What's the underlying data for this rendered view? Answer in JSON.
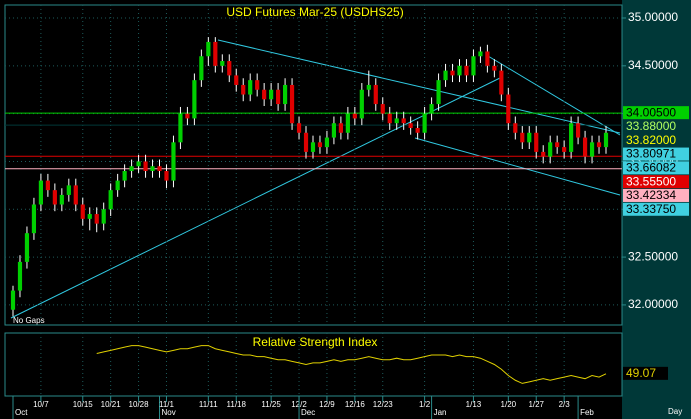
{
  "chart_data": [
    {
      "type": "candlestick",
      "title": "USD Futures Mar-25 (USDHS25)",
      "note": "No Gaps",
      "x_unit": "Day",
      "categories": [
        null,
        null,
        null,
        null,
        "10/7",
        null,
        null,
        null,
        null,
        null,
        "10/15",
        null,
        null,
        null,
        "10/21",
        null,
        null,
        null,
        "10/28",
        null,
        null,
        null,
        "11/1",
        null,
        null,
        null,
        null,
        null,
        "11/11",
        null,
        null,
        null,
        "11/18",
        null,
        null,
        null,
        null,
        "11/25",
        null,
        null,
        null,
        "12/2",
        null,
        null,
        null,
        "12/9",
        null,
        null,
        null,
        "12/16",
        null,
        null,
        null,
        "12/23",
        null,
        null,
        null,
        null,
        null,
        "1/2",
        null,
        null,
        null,
        null,
        null,
        null,
        "1/13",
        null,
        null,
        null,
        null,
        "1/20",
        null,
        null,
        null,
        "1/27",
        null,
        null,
        null,
        "2/3",
        null,
        null,
        null,
        null,
        null,
        null
      ],
      "months": [
        "Oct",
        null,
        null,
        null,
        null,
        null,
        null,
        null,
        null,
        null,
        null,
        null,
        null,
        null,
        null,
        null,
        null,
        null,
        null,
        null,
        null,
        "Nov",
        null,
        null,
        null,
        null,
        null,
        null,
        null,
        null,
        null,
        null,
        null,
        null,
        null,
        null,
        null,
        null,
        null,
        null,
        null,
        "Dec",
        null,
        null,
        null,
        null,
        null,
        null,
        null,
        null,
        null,
        null,
        null,
        null,
        null,
        null,
        null,
        null,
        null,
        null,
        "Jan",
        null,
        null,
        null,
        null,
        null,
        null,
        null,
        null,
        null,
        null,
        null,
        null,
        null,
        null,
        null,
        null,
        null,
        null,
        null,
        null,
        "Feb",
        null,
        null,
        null,
        null
      ],
      "open": [
        31.95,
        32.15,
        32.45,
        32.75,
        33.05,
        33.3,
        33.2,
        33.05,
        33.15,
        33.25,
        33.05,
        32.9,
        32.95,
        32.85,
        33.0,
        33.2,
        33.3,
        33.4,
        33.45,
        33.5,
        33.4,
        33.45,
        33.4,
        33.3,
        33.7,
        34.0,
        33.95,
        34.35,
        34.6,
        34.75,
        34.5,
        34.55,
        34.4,
        34.3,
        34.2,
        34.35,
        34.25,
        34.15,
        34.25,
        34.1,
        34.3,
        33.9,
        33.8,
        33.6,
        33.7,
        33.65,
        33.75,
        33.9,
        33.8,
        34.0,
        33.95,
        34.25,
        34.3,
        34.1,
        34.0,
        33.9,
        33.95,
        33.9,
        33.85,
        33.8,
        34.0,
        34.1,
        34.35,
        34.45,
        34.4,
        34.5,
        34.4,
        34.6,
        34.65,
        34.5,
        34.45,
        34.2,
        33.9,
        33.8,
        33.7,
        33.8,
        33.6,
        33.55,
        33.7,
        33.65,
        33.6,
        33.9,
        33.75,
        33.55,
        33.7,
        33.65
      ],
      "high": [
        32.2,
        32.52,
        32.82,
        33.12,
        33.37,
        33.37,
        33.27,
        33.22,
        33.32,
        33.32,
        33.12,
        33.02,
        33.02,
        33.07,
        33.27,
        33.37,
        33.47,
        33.52,
        33.57,
        33.57,
        33.52,
        33.52,
        33.47,
        33.77,
        34.07,
        34.07,
        34.42,
        34.67,
        34.8,
        34.8,
        34.62,
        34.62,
        34.47,
        34.37,
        34.42,
        34.42,
        34.32,
        34.32,
        34.32,
        34.37,
        34.37,
        33.97,
        33.87,
        33.77,
        33.77,
        33.82,
        33.97,
        33.97,
        34.07,
        34.07,
        34.32,
        34.45,
        34.37,
        34.17,
        34.07,
        34.02,
        34.02,
        33.97,
        33.92,
        34.07,
        34.17,
        34.42,
        34.52,
        34.52,
        34.57,
        34.57,
        34.67,
        34.7,
        34.72,
        34.57,
        34.52,
        34.27,
        33.97,
        33.87,
        33.87,
        33.87,
        33.67,
        33.77,
        33.77,
        33.72,
        33.97,
        33.97,
        33.82,
        33.77,
        33.77,
        33.87
      ],
      "low": [
        31.88,
        32.08,
        32.38,
        32.68,
        32.98,
        33.13,
        32.98,
        32.98,
        33.08,
        32.98,
        32.83,
        32.78,
        32.76,
        32.78,
        32.93,
        33.13,
        33.23,
        33.33,
        33.38,
        33.33,
        33.33,
        33.33,
        33.22,
        33.23,
        33.63,
        33.88,
        33.88,
        34.28,
        34.5,
        34.43,
        34.43,
        34.33,
        34.23,
        34.13,
        34.13,
        34.18,
        34.08,
        34.08,
        34.03,
        34.03,
        33.83,
        33.73,
        33.53,
        33.53,
        33.58,
        33.58,
        33.68,
        33.73,
        33.73,
        33.88,
        33.88,
        34.18,
        34.03,
        33.93,
        33.83,
        33.83,
        33.83,
        33.78,
        33.73,
        33.73,
        33.93,
        34.03,
        34.28,
        34.33,
        34.33,
        34.33,
        34.33,
        34.53,
        34.43,
        34.38,
        34.13,
        33.83,
        33.73,
        33.63,
        33.63,
        33.53,
        33.48,
        33.48,
        33.58,
        33.53,
        33.53,
        33.68,
        33.48,
        33.48,
        33.58,
        33.58
      ],
      "close": [
        32.15,
        32.45,
        32.75,
        33.05,
        33.3,
        33.2,
        33.05,
        33.15,
        33.25,
        33.05,
        32.9,
        32.95,
        32.85,
        33.0,
        33.2,
        33.3,
        33.4,
        33.45,
        33.5,
        33.4,
        33.45,
        33.4,
        33.3,
        33.7,
        34.0,
        33.95,
        34.35,
        34.6,
        34.75,
        34.5,
        34.55,
        34.4,
        34.3,
        34.2,
        34.35,
        34.25,
        34.15,
        34.25,
        34.1,
        34.3,
        33.9,
        33.8,
        33.6,
        33.7,
        33.65,
        33.75,
        33.9,
        33.8,
        34.0,
        33.95,
        34.25,
        34.3,
        34.1,
        34.0,
        33.9,
        33.95,
        33.9,
        33.85,
        33.8,
        34.0,
        34.1,
        34.35,
        34.45,
        34.4,
        34.5,
        34.4,
        34.6,
        34.65,
        34.5,
        34.45,
        34.2,
        33.9,
        33.8,
        33.7,
        33.8,
        33.6,
        33.55,
        33.7,
        33.65,
        33.6,
        33.9,
        33.75,
        33.55,
        33.7,
        33.65,
        33.8
      ],
      "up_color": "#00d000",
      "down_color": "#e00000",
      "wick_color": "#ffffff",
      "ylim": [
        31.79,
        35.136
      ],
      "yticks": [
        {
          "value": 32.0,
          "label": "32.00000"
        },
        {
          "value": 32.5,
          "label": "32.50000"
        },
        {
          "value": 33.0,
          "label": "33.00000"
        },
        {
          "value": 33.5,
          "label": "33.50000"
        },
        {
          "value": 34.0,
          "label": "34.00000"
        },
        {
          "value": 34.5,
          "label": "34.50000"
        },
        {
          "value": 35.0,
          "label": "35.00000"
        }
      ],
      "grid": true,
      "levels": [
        {
          "value": 34.005,
          "label": "34.00500",
          "color": "#00d000",
          "text_color": "#000000",
          "line": true
        },
        {
          "value": 33.88,
          "label": "33.88000",
          "color": "#003838",
          "text_color": "#b0ff60",
          "line": true
        },
        {
          "value": 33.82,
          "label": "33.82000",
          "color": "#003838",
          "text_color": "#ffff00",
          "line": false
        },
        {
          "value": 33.80971,
          "label": "33.80971",
          "color": "#40d0e0",
          "text_color": "#000000",
          "line": false
        },
        {
          "value": 33.66082,
          "label": "33.66082",
          "color": "#40d0e0",
          "text_color": "#000000",
          "line": false
        },
        {
          "value": 33.555,
          "label": "33.55500",
          "color": "#e00000",
          "text_color": "#ffffff",
          "line": true
        },
        {
          "value": 33.42334,
          "label": "33.42334",
          "color": "#ffb0c0",
          "text_color": "#000000",
          "line": true
        },
        {
          "value": 33.3375,
          "label": "33.33750",
          "color": "#40d0e0",
          "text_color": "#000000",
          "line": false
        }
      ]
    },
    {
      "type": "line",
      "title": "Relative Strength Index",
      "color": "#e0d000",
      "ylim": [
        35,
        75
      ],
      "values": [
        null,
        null,
        null,
        null,
        null,
        null,
        null,
        null,
        null,
        null,
        null,
        null,
        62,
        63,
        64,
        65,
        66,
        67,
        67,
        66,
        65,
        64,
        63,
        64,
        65,
        65,
        66,
        67,
        67,
        65,
        64,
        63,
        62,
        61,
        61,
        60,
        60,
        59,
        58,
        58,
        57,
        56,
        55,
        56,
        56,
        57,
        58,
        57,
        58,
        58,
        59,
        60,
        59,
        58,
        58,
        59,
        58,
        58,
        59,
        60,
        61,
        61,
        61,
        60,
        61,
        60,
        60,
        59,
        57,
        55,
        52,
        48,
        45,
        43,
        44,
        45,
        46,
        45,
        46,
        47,
        48,
        47,
        46,
        48,
        47,
        49.07
      ]
    }
  ]
}
